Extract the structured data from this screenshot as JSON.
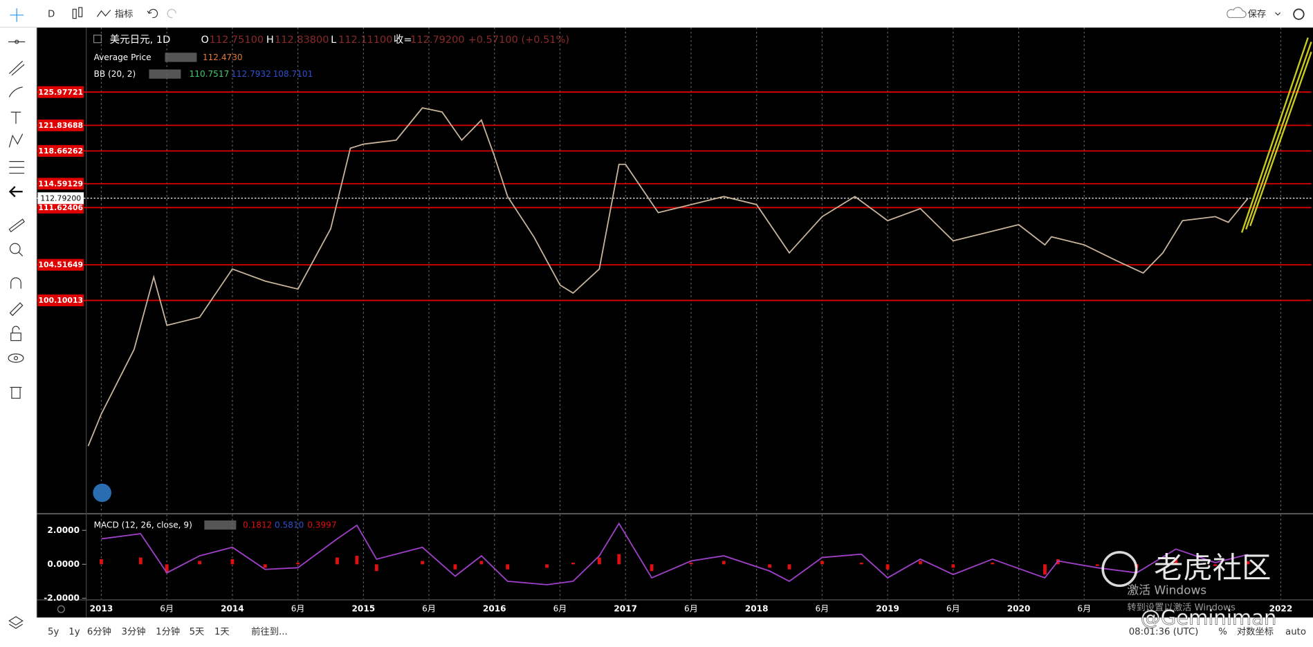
{
  "toolbar": {
    "interval": "D",
    "indicators": "指标",
    "save": "保存"
  },
  "bottom_bar": {
    "ranges": [
      "5y",
      "1y",
      "6分钟",
      "3分钟",
      "1分钟",
      "5天",
      "1天"
    ],
    "goto": "前往到...",
    "clock": "08:01:36 (UTC)",
    "percent": "%",
    "log": "对数坐标",
    "auto": "auto"
  },
  "watermark": {
    "brand": "老虎社区",
    "author": "@Geminiman",
    "activate": "激活 Windows",
    "activate_hint": "转到设置以激活 Windows"
  },
  "chart_data": [
    {
      "type": "line",
      "legend": {
        "symbol": "美元日元, 1D",
        "o_label": "O",
        "o": "112.75100",
        "h_label": "H",
        "h": "112.83800",
        "l_label": "L",
        "l": "112.11100",
        "c_label": "收=",
        "c": "112.79200",
        "change": "+0.57100 (+0.51%)",
        "avg_name": "Average Price",
        "avg_value": "112.4730",
        "bb_name": "BB (20, 2)",
        "bb_mid": "110.7517",
        "bb_upper": "112.7932",
        "bb_lower": "108.7101"
      },
      "x": [
        2012.9,
        2013.0,
        2013.25,
        2013.4,
        2013.5,
        2013.75,
        2014.0,
        2014.25,
        2014.5,
        2014.75,
        2014.9,
        2015.0,
        2015.25,
        2015.45,
        2015.6,
        2015.75,
        2015.9,
        2016.0,
        2016.1,
        2016.3,
        2016.5,
        2016.6,
        2016.8,
        2016.95,
        2017.0,
        2017.25,
        2017.5,
        2017.75,
        2018.0,
        2018.25,
        2018.5,
        2018.75,
        2019.0,
        2019.25,
        2019.5,
        2019.75,
        2020.0,
        2020.2,
        2020.25,
        2020.5,
        2020.75,
        2020.95,
        2021.1,
        2021.25,
        2021.5,
        2021.6,
        2021.75
      ],
      "series": [
        {
          "name": "美元日元, 1D",
          "color": "#c8b49a",
          "values": [
            82,
            86,
            94,
            103,
            97,
            98,
            104,
            102.5,
            101.5,
            109,
            119,
            119.5,
            120,
            124,
            123.5,
            120,
            122.5,
            118,
            113,
            108,
            102,
            101,
            104,
            117,
            117,
            111,
            112,
            113,
            112,
            106,
            110.5,
            113,
            110,
            111.5,
            107.5,
            108.5,
            109.5,
            107,
            108,
            107,
            105,
            103.5,
            106,
            110,
            110.5,
            109.8,
            112.79
          ]
        }
      ],
      "levels": [
        125.97721,
        121.83688,
        118.66262,
        114.59129,
        111.62406,
        104.51649,
        100.10013
      ],
      "level_color": "#e00000",
      "price_line": {
        "value": 112.792,
        "label": "112.79200"
      },
      "xlim": [
        2012.885,
        2022.233
      ],
      "ylim": [
        73.7,
        133.98
      ],
      "xticks": [
        2013,
        {
          "value": 2013.5,
          "label": "6月"
        },
        2014,
        {
          "value": 2014.5,
          "label": "6月"
        },
        2015,
        {
          "value": 2015.5,
          "label": "6月"
        },
        2016,
        {
          "value": 2016.5,
          "label": "6月"
        },
        2017,
        {
          "value": 2017.5,
          "label": "6月"
        },
        2018,
        {
          "value": 2018.5,
          "label": "6月"
        },
        2019,
        {
          "value": 2019.5,
          "label": "6月"
        },
        2020,
        {
          "value": 2020.5,
          "label": "6月"
        },
        2022
      ],
      "grid": "x"
    },
    {
      "type": "macd",
      "legend": {
        "name": "MACD (12, 26, close, 9)",
        "hist": "0.1812",
        "macd": "0.5810",
        "signal": "0.3997"
      },
      "x": [
        2013.0,
        2013.3,
        2013.5,
        2013.75,
        2014.0,
        2014.25,
        2014.5,
        2014.8,
        2014.95,
        2015.1,
        2015.45,
        2015.7,
        2015.9,
        2016.1,
        2016.4,
        2016.6,
        2016.8,
        2016.95,
        2017.2,
        2017.5,
        2017.75,
        2018.1,
        2018.25,
        2018.5,
        2018.8,
        2019.0,
        2019.25,
        2019.5,
        2019.8,
        2020.2,
        2020.3,
        2020.6,
        2020.9,
        2021.2,
        2021.5,
        2021.75
      ],
      "series": [
        {
          "color": "#a040c8",
          "values": [
            1.5,
            1.8,
            -0.5,
            0.5,
            1.0,
            -0.3,
            -0.2,
            1.5,
            2.3,
            0.3,
            1.0,
            -0.7,
            0.5,
            -1.0,
            -1.2,
            -1.0,
            0.5,
            2.4,
            -0.8,
            0.2,
            0.5,
            -0.4,
            -1.0,
            0.4,
            0.6,
            -0.8,
            0.3,
            -0.6,
            0.3,
            -0.8,
            0.2,
            -0.2,
            -0.5,
            0.9,
            0.1,
            0.58
          ]
        },
        {
          "color": "#e01010",
          "values": [
            0.3,
            0.4,
            -0.5,
            0.2,
            0.3,
            -0.2,
            0.1,
            0.4,
            0.5,
            -0.4,
            0.2,
            -0.3,
            0.2,
            -0.3,
            -0.2,
            0.1,
            0.4,
            0.6,
            -0.4,
            0.1,
            0.2,
            -0.2,
            -0.3,
            0.2,
            0.1,
            -0.3,
            0.2,
            -0.2,
            0.1,
            -0.6,
            0.3,
            -0.1,
            -0.2,
            0.3,
            -0.1,
            0.18
          ]
        }
      ],
      "xlim": [
        2012.885,
        2022.233
      ],
      "ylim": [
        -2.05,
        2.93
      ],
      "yticks": [
        {
          "value": 2,
          "label": "2.0000"
        },
        {
          "value": 0,
          "label": "0.0000"
        },
        {
          "value": -2,
          "label": "-2.0000"
        }
      ]
    }
  ]
}
